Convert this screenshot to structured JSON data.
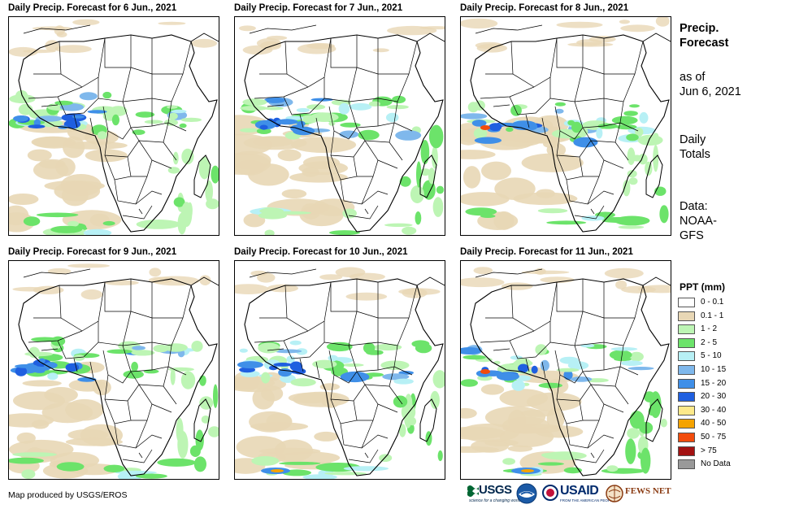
{
  "panels": [
    {
      "title": "Daily Precip. Forecast for 6 Jun., 2021"
    },
    {
      "title": "Daily Precip. Forecast for 7 Jun., 2021"
    },
    {
      "title": "Daily Precip. Forecast for 8 Jun., 2021"
    },
    {
      "title": "Daily Precip. Forecast for 9 Jun., 2021"
    },
    {
      "title": "Daily Precip. Forecast for 10 Jun., 2021"
    },
    {
      "title": "Daily Precip. Forecast for 11 Jun., 2021"
    }
  ],
  "sidebar": {
    "title_line1": "Precip.",
    "title_line2": "Forecast",
    "asof_line1": "as of",
    "asof_line2": "Jun 6, 2021",
    "totals_line1": "Daily",
    "totals_line2": "Totals",
    "data_line1": "Data:",
    "data_line2": "NOAA-",
    "data_line3": "GFS"
  },
  "legend": {
    "title": "PPT (mm)",
    "items": [
      {
        "label": "0 - 0.1",
        "color": "#ffffff"
      },
      {
        "label": "0.1 - 1",
        "color": "#e8d7b5"
      },
      {
        "label": "1 - 2",
        "color": "#bdf5b4"
      },
      {
        "label": "2 - 5",
        "color": "#6ce36a"
      },
      {
        "label": "5 - 10",
        "color": "#b7f0f5"
      },
      {
        "label": "10 - 15",
        "color": "#7fb8ec"
      },
      {
        "label": "15 - 20",
        "color": "#3f8fe8"
      },
      {
        "label": "20 - 30",
        "color": "#1f5fe0"
      },
      {
        "label": "30 - 40",
        "color": "#fde98a"
      },
      {
        "label": "40 - 50",
        "color": "#f5a300"
      },
      {
        "label": "50 - 75",
        "color": "#f24c0c"
      },
      {
        "label": "> 75",
        "color": "#a31212"
      },
      {
        "label": "No Data",
        "color": "#999999"
      }
    ]
  },
  "footer": {
    "credit": "Map produced by USGS/EROS",
    "logos": {
      "usgs": "USGS",
      "usgs_tagline": "science for a changing world",
      "usaid": "USAID",
      "usaid_tagline": "FROM THE AMERICAN PEOPLE",
      "fews": "FEWS NET"
    }
  }
}
